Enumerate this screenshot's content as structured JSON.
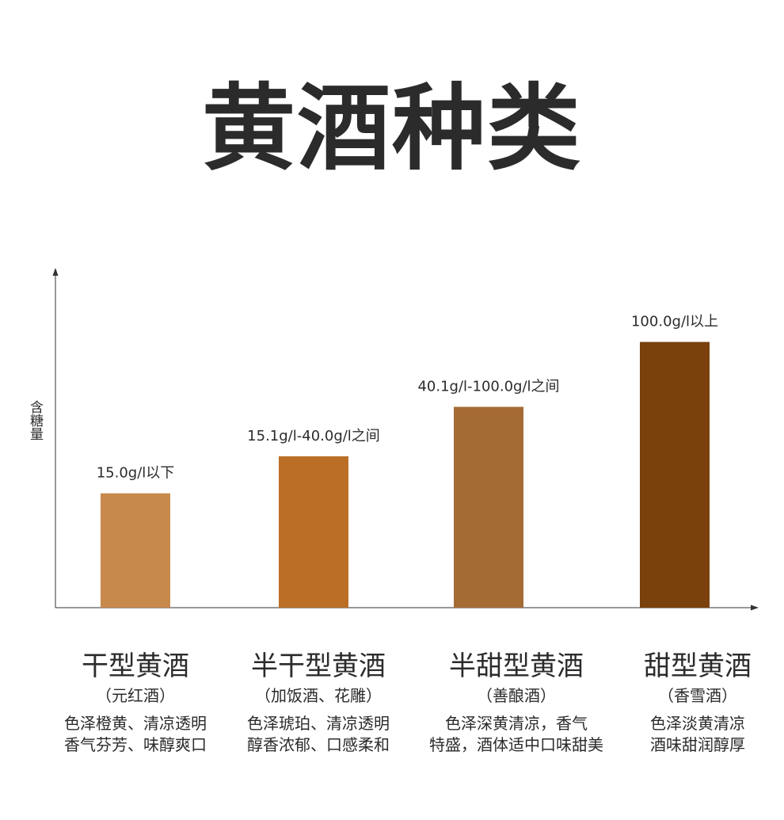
{
  "title": "黄酒种类",
  "chart_data": {
    "type": "bar",
    "ylabel": "含糖量",
    "ylim": [
      0,
      110
    ],
    "grid": false,
    "bars": [
      {
        "name": "干型黄酒",
        "alias": "（元红酒）",
        "label": "15.0g/l以下",
        "value": 37,
        "color": "#C8894D",
        "desc": [
          "色泽橙黄、清凉透明",
          "香气芬芳、味醇爽口"
        ]
      },
      {
        "name": "半干型黄酒",
        "alias": "（加饭酒、花雕）",
        "label": "15.1g/l-40.0g/l之间",
        "value": 49,
        "color": "#BB6F26",
        "desc": [
          "色泽琥珀、清凉透明",
          "醇香浓郁、口感柔和"
        ]
      },
      {
        "name": "半甜型黄酒",
        "alias": "（善酿酒）",
        "label": "40.1g/l-100.0g/l之间",
        "value": 65,
        "color": "#A56B35",
        "desc": [
          "色泽深黄清凉，香气",
          "特盛，酒体适中口味甜美"
        ]
      },
      {
        "name": "甜型黄酒",
        "alias": "（香雪酒）",
        "label": "100.0g/l以上",
        "value": 86,
        "color": "#7A410D",
        "desc": [
          "色泽淡黄清凉",
          "酒味甜润醇厚"
        ]
      }
    ]
  }
}
